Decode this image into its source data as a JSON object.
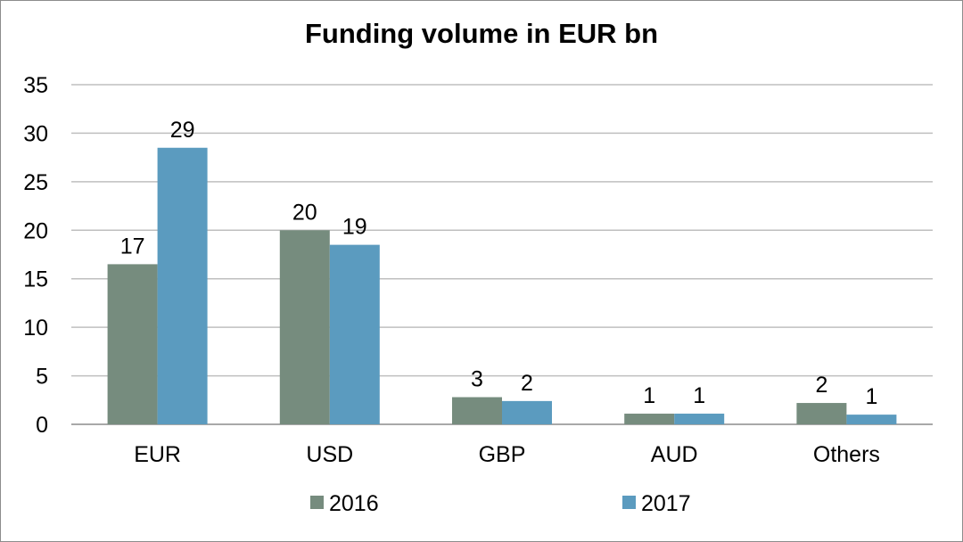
{
  "chart_data": {
    "type": "bar",
    "title": "Funding volume in EUR bn",
    "xlabel": "",
    "ylabel": "",
    "categories": [
      "EUR",
      "USD",
      "GBP",
      "AUD",
      "Others"
    ],
    "series": [
      {
        "name": "2016",
        "color": "#768c7e",
        "values": [
          16.5,
          20,
          2.8,
          1.1,
          2.2
        ],
        "labels": [
          "17",
          "20",
          "3",
          "1",
          "2"
        ]
      },
      {
        "name": "2017",
        "color": "#5b9bbf",
        "values": [
          28.5,
          18.5,
          2.4,
          1.1,
          1.0
        ],
        "labels": [
          "29",
          "19",
          "2",
          "1",
          "1"
        ]
      }
    ],
    "ylim": [
      0,
      35
    ],
    "yticks": [
      0,
      5,
      10,
      15,
      20,
      25,
      30,
      35
    ],
    "grid": true,
    "legend_position": "bottom"
  }
}
